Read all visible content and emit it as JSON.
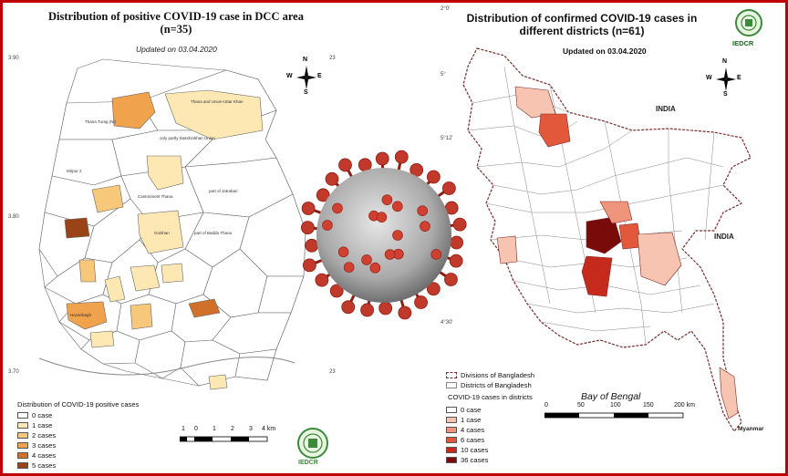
{
  "left_map": {
    "title_line1": "Distribution of positive COVID-19 case  in DCC area",
    "title_line2": "(n=35)",
    "updated": "Updated on 03.04.2020",
    "coords": {
      "lat_top": "3.90",
      "lat_mid": "3.80",
      "lat_bottom": "3.70",
      "lon_right": "23"
    },
    "compass": {
      "n": "N",
      "s": "S",
      "e": "E",
      "w": "W"
    },
    "legend": {
      "title": "Distribution of COVID-19 positive cases",
      "items": [
        {
          "label": "0 case",
          "color": "#ffffff"
        },
        {
          "label": "1 case",
          "color": "#fde8b4"
        },
        {
          "label": "2 cases",
          "color": "#f7c87a"
        },
        {
          "label": "3 cases",
          "color": "#f0a24d"
        },
        {
          "label": "4 cases",
          "color": "#d0702a"
        },
        {
          "label": "5 cases",
          "color": "#9a4318"
        }
      ]
    },
    "scale": {
      "ticks": [
        "1",
        "0",
        "1",
        "2",
        "3",
        "4 km"
      ]
    },
    "area_labels": {
      "khan": "Thana and Union-Uttar Khan",
      "turag": "Thana Turag (Ni)",
      "turag_part": "only partly Dakshinkhan Union",
      "cantonment": "Cantonment Thana",
      "gulshan": "Gulshan",
      "badda": "part of Badda Thana",
      "jatrabari": "part of Jatrabari",
      "hazaribagh": "Hazaribagh",
      "mirpur": "Mirpur 2"
    },
    "logo_text": "IEDCR"
  },
  "right_map": {
    "title_line1": "Distribution of confirmed COVID-19 cases in",
    "title_line2": "different districts (n=61)",
    "updated": "Updated on 03.04.2020",
    "coords": {
      "lon_top": "2°0'",
      "lat1": "5°",
      "lat2": "5°12'",
      "lat3": "4°30'"
    },
    "compass": {
      "n": "N",
      "s": "S",
      "e": "E",
      "w": "W"
    },
    "country_labels": [
      "INDIA",
      "INDIA",
      "Myanmar"
    ],
    "bay": "Bay of Bengal",
    "legend": {
      "boundary_items": [
        "Divisions of Bangladesh",
        "Districts of Bangladesh"
      ],
      "title": "COVID-19 cases in districts",
      "items": [
        {
          "label": "0 case",
          "color": "#ffffff"
        },
        {
          "label": "1 case",
          "color": "#f6c4b0"
        },
        {
          "label": "4 cases",
          "color": "#ef957b"
        },
        {
          "label": "6 cases",
          "color": "#e2583a"
        },
        {
          "label": "10 cases",
          "color": "#c62a1c"
        },
        {
          "label": "36 cases",
          "color": "#7a0b0b"
        }
      ]
    },
    "scale": {
      "ticks": [
        "0",
        "50",
        "100",
        "150",
        "200 km"
      ]
    },
    "logo_text": "IEDCR"
  },
  "colors": {
    "frame": "#c00000",
    "virus_body": "#bfbfbf",
    "virus_spike": "#c0392b"
  }
}
